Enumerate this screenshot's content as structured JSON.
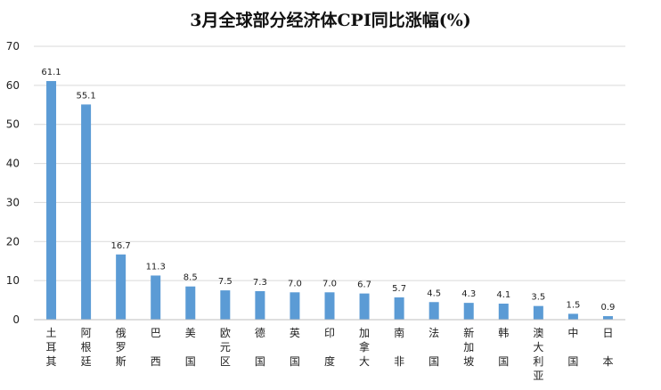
{
  "chart_data": {
    "type": "bar",
    "title": "3月全球部分经济体CPI同比涨幅(%)",
    "xlabel": "",
    "ylabel": "",
    "ylim": [
      0,
      70
    ],
    "yticks": [
      0,
      10,
      20,
      30,
      40,
      50,
      60,
      70
    ],
    "grid": true,
    "legend": "none",
    "bar_color": "#5b9bd5",
    "categories": [
      "土耳其",
      "阿根廷",
      "俄罗斯",
      "巴西",
      "美国",
      "欧元区",
      "德国",
      "英国",
      "印度",
      "加拿大",
      "南非",
      "法国",
      "新加坡",
      "韩国",
      "澳大利亚",
      "中国",
      "日本"
    ],
    "values": [
      61.1,
      55.1,
      16.7,
      11.3,
      8.5,
      7.5,
      7.3,
      7.0,
      7.0,
      6.7,
      5.7,
      4.5,
      4.3,
      4.1,
      3.5,
      1.5,
      0.9
    ],
    "value_labels": [
      "61.1",
      "55.1",
      "16.7",
      "11.3",
      "8.5",
      "7.5",
      "7.3",
      "7.0",
      "7.0",
      "6.7",
      "5.7",
      "4.5",
      "4.3",
      "4.1",
      "3.5",
      "1.5",
      "0.9"
    ]
  }
}
